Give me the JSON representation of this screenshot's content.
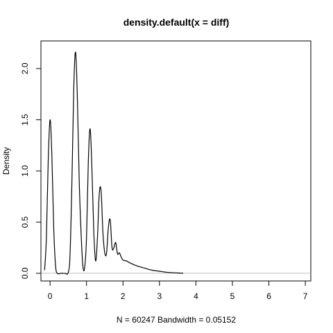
{
  "chart_data": {
    "type": "line",
    "title": "density.default(x = diff)",
    "xlabel": "N = 60247   Bandwidth = 0.05152",
    "ylabel": "Density",
    "xlim": [
      -0.25,
      7.15
    ],
    "ylim": [
      -0.075,
      2.27
    ],
    "x_ticks": [
      0,
      1,
      2,
      3,
      4,
      5,
      6,
      7
    ],
    "y_ticks": [
      0.0,
      0.5,
      1.0,
      1.5,
      2.0
    ],
    "x_tick_labels": [
      "0",
      "1",
      "2",
      "3",
      "4",
      "5",
      "6",
      "7"
    ],
    "y_tick_labels": [
      "0.0",
      "0.5",
      "1.0",
      "1.5",
      "2.0"
    ],
    "baseline_y": 0,
    "baseline_color": "#bebebe",
    "line_color": "#000000",
    "grid": false,
    "series": [
      {
        "x": [
          -0.15,
          -0.1,
          -0.05,
          0.0,
          0.05,
          0.1,
          0.15,
          0.2,
          0.3,
          0.4,
          0.5,
          0.55,
          0.6,
          0.65,
          0.7,
          0.75,
          0.8,
          0.85,
          0.9,
          0.95,
          1.0,
          1.05,
          1.1,
          1.15,
          1.2,
          1.25,
          1.3,
          1.35,
          1.4,
          1.45,
          1.5,
          1.55,
          1.6,
          1.65,
          1.7,
          1.75,
          1.8,
          1.85,
          1.9,
          1.95,
          2.0,
          2.1,
          2.2,
          2.4,
          2.6,
          2.8,
          3.0,
          3.2,
          3.4,
          3.6,
          3.65
        ],
        "y": [
          0.03,
          0.35,
          1.1,
          1.5,
          1.15,
          0.45,
          0.08,
          0.0,
          0.0,
          0.0,
          0.01,
          0.2,
          0.9,
          1.8,
          2.16,
          1.7,
          0.9,
          0.4,
          0.07,
          0.06,
          0.35,
          1.1,
          1.41,
          1.0,
          0.4,
          0.12,
          0.35,
          0.78,
          0.8,
          0.4,
          0.2,
          0.2,
          0.45,
          0.52,
          0.25,
          0.25,
          0.3,
          0.19,
          0.2,
          0.16,
          0.13,
          0.12,
          0.1,
          0.07,
          0.05,
          0.03,
          0.02,
          0.01,
          0.005,
          0.002,
          0.0
        ]
      }
    ]
  }
}
